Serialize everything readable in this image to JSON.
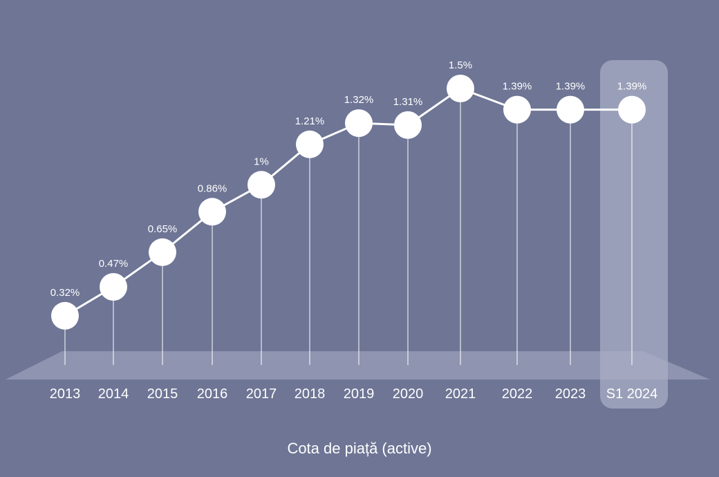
{
  "chart_data": {
    "type": "line",
    "categories": [
      "2013",
      "2014",
      "2015",
      "2016",
      "2017",
      "2018",
      "2019",
      "2020",
      "2021",
      "2022",
      "2023",
      "S1 2024"
    ],
    "values": [
      0.32,
      0.47,
      0.65,
      0.86,
      1.0,
      1.21,
      1.32,
      1.31,
      1.5,
      1.39,
      1.39,
      1.39
    ],
    "value_labels": [
      "0.32%",
      "0.47%",
      "0.65%",
      "0.86%",
      "1%",
      "1.21%",
      "1.32%",
      "1.31%",
      "1.5%",
      "1.39%",
      "1.39%",
      "1.39%"
    ],
    "xlabel": "Cota de piață (active)",
    "ylabel": "",
    "title": "",
    "ylim": [
      0,
      1.6
    ],
    "grid": false,
    "highlighted_category": "S1 2024",
    "colors": {
      "background": "#6e7595",
      "line": "#ffffff",
      "marker": "#ffffff",
      "highlight": "#a9adc6",
      "floor": "#9ba0b9"
    }
  }
}
